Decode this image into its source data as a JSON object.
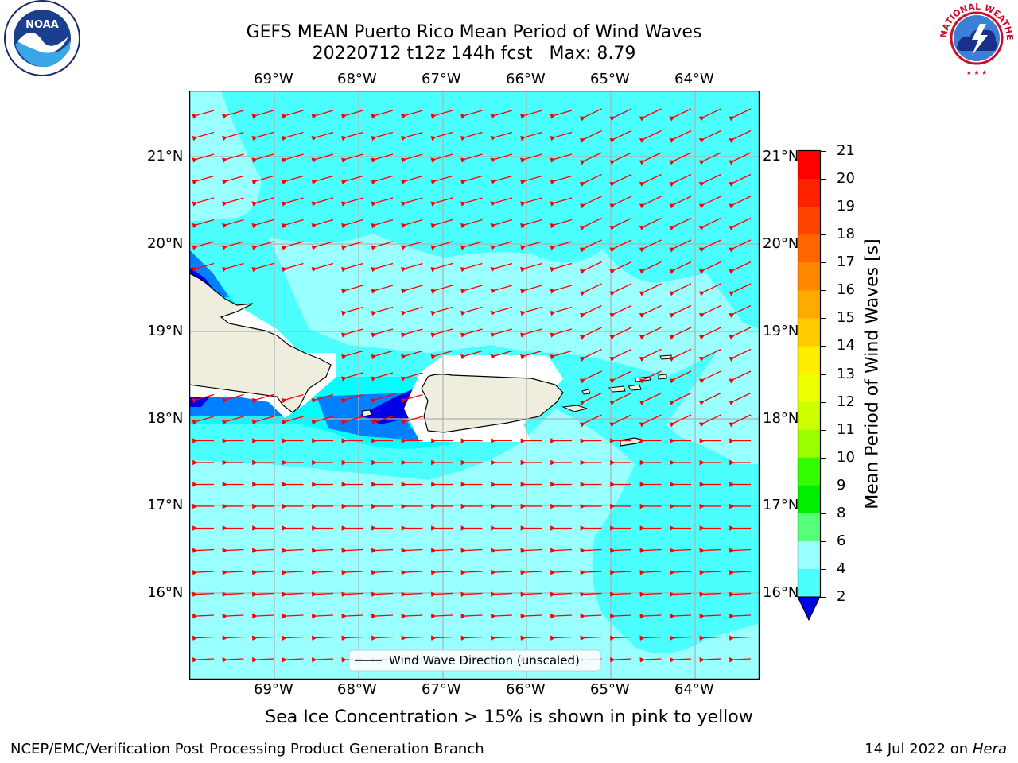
{
  "header": {
    "title_line1": "GEFS MEAN Puerto Rico Mean Period of Wind Waves",
    "title_line2": "20220712 t12z 144h fcst   Max: 8.79"
  },
  "logos": {
    "left": {
      "text": "NOAA",
      "ring_text": "NATIONAL OCEANIC AND ATMOSPHERIC ADMINISTRATION · U.S. DEPARTMENT OF COMMERCE"
    },
    "right": {
      "ring_text": "NATIONAL WEATHER SERVICE"
    }
  },
  "map": {
    "lon_labels": [
      "69°W",
      "68°W",
      "67°W",
      "66°W",
      "65°W",
      "64°W"
    ],
    "lat_labels": [
      "21°N",
      "20°N",
      "19°N",
      "18°N",
      "17°N",
      "16°N"
    ],
    "legend_label": "Wind Wave Direction (unscaled)",
    "colors": {
      "ocean_light": "#99ffff",
      "ocean": "#4cffff",
      "ocean_cyan": "#00ffff",
      "blue": "#0080ff",
      "dark_blue": "#0000e6",
      "land": "#efedde",
      "arrow": "#ff0000",
      "grid": "#b0b0b0"
    }
  },
  "colorbar": {
    "label": "Mean Period of Wind Waves [s]",
    "ticks": [
      "21",
      "20",
      "19",
      "18",
      "17",
      "16",
      "15",
      "14",
      "13",
      "12",
      "11",
      "10",
      "9",
      "8",
      "6",
      "4",
      "2"
    ],
    "colors_top_to_bottom": [
      "#ff0000",
      "#ff2200",
      "#ff4400",
      "#ff6600",
      "#ff8800",
      "#ffaa00",
      "#ffcc00",
      "#ffee00",
      "#eeff00",
      "#ccff00",
      "#99ff00",
      "#33ff00",
      "#00ee00",
      "#55ff77",
      "#99ffff",
      "#4cffff",
      "#00ffff",
      "#0080ff"
    ],
    "extend_color": "#0000e6"
  },
  "notes": {
    "sea_ice": "Sea Ice Concentration > 15% is shown in pink to yellow"
  },
  "footer": {
    "left": "NCEP/EMC/Verification Post Processing Product Generation Branch",
    "right_prefix": "14 Jul 2022 on ",
    "right_machine": "Hera"
  }
}
